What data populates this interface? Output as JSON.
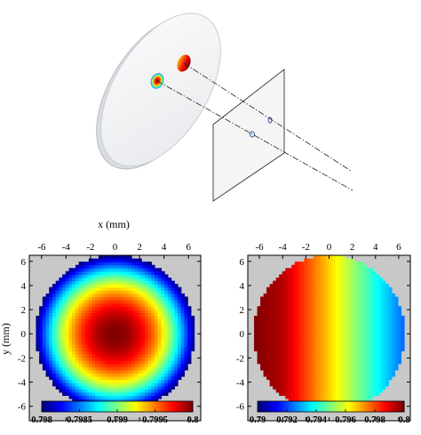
{
  "colors": {
    "jet": [
      "#00007f",
      "#0000ff",
      "#007fff",
      "#00ffff",
      "#7fff7f",
      "#ffff00",
      "#ff7f00",
      "#ff0000",
      "#7f0000"
    ],
    "outside_aperture": "#c8c8c8",
    "disk_fill": "#f3f4f5",
    "disk_edge": "#c9cdd2",
    "screen_fill": "#f4f4f4"
  },
  "chart_data": [
    {
      "type": "heatmap",
      "panel": "left",
      "xlabel": "x (mm)",
      "ylabel": "y (mm)",
      "xlim": [
        -7,
        7
      ],
      "ylim": [
        6.5,
        -7.2
      ],
      "xticks": [
        -6,
        -4,
        -2,
        0,
        2,
        4,
        6
      ],
      "yticks": [
        -6,
        -4,
        -2,
        0,
        2,
        4,
        6
      ],
      "aperture_radius": 6.5,
      "center": [
        0,
        0
      ],
      "value_range": [
        0.798,
        0.8
      ],
      "pattern": "radial, maximum at center",
      "colorbar": {
        "ticks": [
          0.798,
          0.7985,
          0.799,
          0.7995,
          0.8
        ],
        "tick_labels": [
          "0.798",
          "0.7985",
          "0.799",
          "0.7995",
          "0.8"
        ]
      }
    },
    {
      "type": "heatmap",
      "panel": "right",
      "xlabel": "",
      "ylabel": "",
      "xlim": [
        -7,
        7
      ],
      "ylim": [
        6.5,
        -7.2
      ],
      "xticks": [
        -6,
        -4,
        -2,
        0,
        2,
        4,
        6
      ],
      "yticks": [
        -6,
        -4,
        -2,
        0,
        2,
        4,
        6
      ],
      "aperture_radius": 6.5,
      "value_range": [
        0.79,
        0.8
      ],
      "pattern": "gradient along x, maximum at left edge",
      "colorbar": {
        "ticks": [
          0.79,
          0.792,
          0.794,
          0.796,
          0.798,
          0.8
        ],
        "tick_labels": [
          "0.79",
          "0.792",
          "0.794",
          "0.796",
          "0.798",
          "0.8"
        ]
      }
    }
  ]
}
